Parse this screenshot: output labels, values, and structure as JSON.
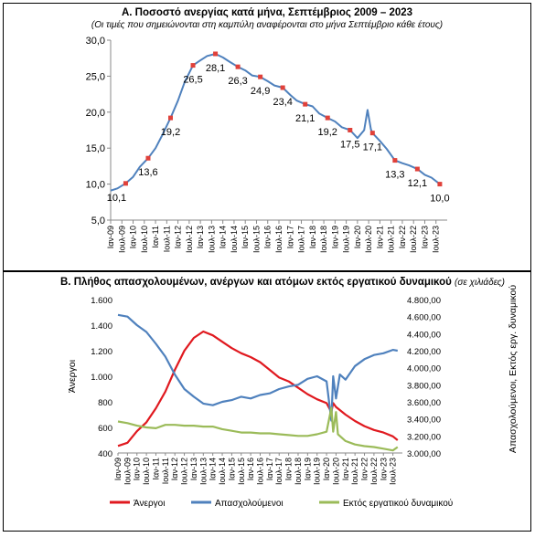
{
  "chart_data": [
    {
      "type": "line",
      "title": "Α. Ποσοστό ανεργίας κατά μήνα, Σεπτέμβριος 2009 – 2023",
      "subtitle": "(Οι τιμές που σημειώνονται στη καμπύλη αναφέρονται στο μήνα Σεπτέμβριο κάθε έτους)",
      "ylim": [
        5,
        30
      ],
      "yticks": [
        "5,0",
        "10,0",
        "15,0",
        "20,0",
        "25,0",
        "30,0"
      ],
      "ytick_values": [
        5,
        10,
        15,
        20,
        25,
        30
      ],
      "xticks": [
        "Ιαν-09",
        "Ιουλ-09",
        "Ιαν-10",
        "Ιουλ-10",
        "Ιαν-11",
        "Ιουλ-11",
        "Ιαν-12",
        "Ιουλ-12",
        "Ιαν-13",
        "Ιουλ-13",
        "Ιαν-14",
        "Ιουλ-14",
        "Ιαν-15",
        "Ιουλ-15",
        "Ιαν-16",
        "Ιουλ-16",
        "Ιαν-17",
        "Ιουλ-17",
        "Ιαν-18",
        "Ιουλ-18",
        "Ιαν-19",
        "Ιουλ-19",
        "Ιαν-20",
        "Ιουλ-20",
        "Ιαν-21",
        "Ιουλ-21",
        "Ιαν-22",
        "Ιουλ-22",
        "Ιαν-23",
        "Ιουλ-23"
      ],
      "grid": false,
      "series": [
        {
          "color": "#4f81bd",
          "points": [
            [
              2009.0,
              9.1
            ],
            [
              2009.3,
              9.4
            ],
            [
              2009.67,
              10.1
            ],
            [
              2010.0,
              11.0
            ],
            [
              2010.3,
              12.4
            ],
            [
              2010.67,
              13.6
            ],
            [
              2011.0,
              15.0
            ],
            [
              2011.3,
              16.8
            ],
            [
              2011.67,
              19.2
            ],
            [
              2012.0,
              21.6
            ],
            [
              2012.3,
              24.2
            ],
            [
              2012.67,
              26.5
            ],
            [
              2013.0,
              27.2
            ],
            [
              2013.3,
              27.8
            ],
            [
              2013.67,
              28.1
            ],
            [
              2014.0,
              27.6
            ],
            [
              2014.3,
              27.0
            ],
            [
              2014.67,
              26.3
            ],
            [
              2015.0,
              25.8
            ],
            [
              2015.3,
              25.1
            ],
            [
              2015.67,
              24.9
            ],
            [
              2016.0,
              24.3
            ],
            [
              2016.3,
              23.7
            ],
            [
              2016.67,
              23.4
            ],
            [
              2017.0,
              22.4
            ],
            [
              2017.3,
              21.6
            ],
            [
              2017.67,
              21.1
            ],
            [
              2018.0,
              20.8
            ],
            [
              2018.3,
              19.8
            ],
            [
              2018.67,
              19.2
            ],
            [
              2019.0,
              18.7
            ],
            [
              2019.3,
              17.9
            ],
            [
              2019.67,
              17.5
            ],
            [
              2020.0,
              16.4
            ],
            [
              2020.3,
              17.5
            ],
            [
              2020.45,
              20.3
            ],
            [
              2020.6,
              17.6
            ],
            [
              2020.67,
              17.1
            ],
            [
              2021.0,
              16.0
            ],
            [
              2021.3,
              14.9
            ],
            [
              2021.67,
              13.3
            ],
            [
              2022.0,
              12.9
            ],
            [
              2022.3,
              12.6
            ],
            [
              2022.67,
              12.1
            ],
            [
              2023.0,
              11.3
            ],
            [
              2023.3,
              10.9
            ],
            [
              2023.67,
              10.0
            ]
          ]
        }
      ],
      "markers": [
        {
          "x": 2009.67,
          "y": 10.1,
          "label": "10,1"
        },
        {
          "x": 2010.67,
          "y": 13.6,
          "label": "13,6"
        },
        {
          "x": 2011.67,
          "y": 19.2,
          "label": "19,2"
        },
        {
          "x": 2012.67,
          "y": 26.5,
          "label": "26,5"
        },
        {
          "x": 2013.67,
          "y": 28.1,
          "label": "28,1"
        },
        {
          "x": 2014.67,
          "y": 26.3,
          "label": "26,3"
        },
        {
          "x": 2015.67,
          "y": 24.9,
          "label": "24,9"
        },
        {
          "x": 2016.67,
          "y": 23.4,
          "label": "23,4"
        },
        {
          "x": 2017.67,
          "y": 21.1,
          "label": "21,1"
        },
        {
          "x": 2018.67,
          "y": 19.2,
          "label": "19,2"
        },
        {
          "x": 2019.67,
          "y": 17.5,
          "label": "17,5"
        },
        {
          "x": 2020.67,
          "y": 17.1,
          "label": "17,1"
        },
        {
          "x": 2021.67,
          "y": 13.3,
          "label": "13,3"
        },
        {
          "x": 2022.67,
          "y": 12.1,
          "label": "12,1"
        },
        {
          "x": 2023.67,
          "y": 10.0,
          "label": "10,0"
        }
      ],
      "marker_color": "#e0413a"
    },
    {
      "type": "line",
      "title": "Β. Πλήθος απασχολουμένων, ανέργων και ατόμων εκτός εργατικού δυναμικού",
      "title_note": "(σε χιλιάδες)",
      "ylabel": "Άνεργοι",
      "y2label": "Απασχολούμενοι, Εκτός εργ. δυναμικού",
      "ylim": [
        400,
        1600
      ],
      "yticks": [
        "400",
        "600",
        "800",
        "1.000",
        "1.200",
        "1.400",
        "1.600"
      ],
      "ytick_values": [
        400,
        600,
        800,
        1000,
        1200,
        1400,
        1600
      ],
      "y2lim": [
        3000,
        4800
      ],
      "y2ticks": [
        "3.000,00",
        "3.200,00",
        "3.400,00",
        "3.600,00",
        "3.800,00",
        "4.000,00",
        "4.200,00",
        "4.400,00",
        "4.600,00",
        "4.800,00"
      ],
      "y2tick_values": [
        3000,
        3200,
        3400,
        3600,
        3800,
        4000,
        4200,
        4400,
        4600,
        4800
      ],
      "xticks": [
        "Ιαν-09",
        "Ιουλ-09",
        "Ιαν-10",
        "Ιουλ-10",
        "Ιαν-11",
        "Ιουλ-11",
        "Ιαν-12",
        "Ιουλ-12",
        "Ιαν-13",
        "Ιουλ-13",
        "Ιαν-14",
        "Ιουλ-14",
        "Ιαν-15",
        "Ιουλ-15",
        "Ιαν-16",
        "Ιουλ-16",
        "Ιαν-17",
        "Ιουλ-17",
        "Ιαν-18",
        "Ιουλ-18",
        "Ιαν-19",
        "Ιουλ-19",
        "Ιαν-20",
        "Ιουλ-20",
        "Ιαν-21",
        "Ιουλ-21",
        "Ιαν-22",
        "Ιουλ-22",
        "Ιαν-23",
        "Ιουλ-23"
      ],
      "grid": false,
      "legend_position": "bottom",
      "series": [
        {
          "name": "Άνεργοι",
          "color": "#e0191f",
          "axis": "left",
          "points": [
            [
              2009.0,
              455
            ],
            [
              2009.5,
              480
            ],
            [
              2010.0,
              570
            ],
            [
              2010.5,
              640
            ],
            [
              2011.0,
              750
            ],
            [
              2011.5,
              880
            ],
            [
              2012.0,
              1050
            ],
            [
              2012.5,
              1200
            ],
            [
              2013.0,
              1300
            ],
            [
              2013.5,
              1350
            ],
            [
              2014.0,
              1320
            ],
            [
              2014.5,
              1270
            ],
            [
              2015.0,
              1220
            ],
            [
              2015.5,
              1180
            ],
            [
              2016.0,
              1150
            ],
            [
              2016.5,
              1110
            ],
            [
              2017.0,
              1050
            ],
            [
              2017.5,
              990
            ],
            [
              2018.0,
              960
            ],
            [
              2018.5,
              910
            ],
            [
              2019.0,
              860
            ],
            [
              2019.5,
              820
            ],
            [
              2020.0,
              790
            ],
            [
              2020.25,
              720
            ],
            [
              2020.35,
              790
            ],
            [
              2020.5,
              760
            ],
            [
              2021.0,
              700
            ],
            [
              2021.5,
              650
            ],
            [
              2022.0,
              610
            ],
            [
              2022.5,
              580
            ],
            [
              2023.0,
              560
            ],
            [
              2023.5,
              530
            ],
            [
              2023.75,
              500
            ]
          ]
        },
        {
          "name": "Απασχολούμενοι",
          "color": "#4f81bd",
          "axis": "right",
          "points": [
            [
              2009.0,
              4620
            ],
            [
              2009.5,
              4600
            ],
            [
              2010.0,
              4500
            ],
            [
              2010.5,
              4420
            ],
            [
              2011.0,
              4280
            ],
            [
              2011.5,
              4130
            ],
            [
              2012.0,
              3920
            ],
            [
              2012.5,
              3750
            ],
            [
              2013.0,
              3660
            ],
            [
              2013.5,
              3580
            ],
            [
              2014.0,
              3560
            ],
            [
              2014.5,
              3600
            ],
            [
              2015.0,
              3620
            ],
            [
              2015.5,
              3660
            ],
            [
              2016.0,
              3640
            ],
            [
              2016.5,
              3680
            ],
            [
              2017.0,
              3700
            ],
            [
              2017.5,
              3750
            ],
            [
              2018.0,
              3780
            ],
            [
              2018.5,
              3800
            ],
            [
              2019.0,
              3870
            ],
            [
              2019.5,
              3900
            ],
            [
              2020.0,
              3840
            ],
            [
              2020.25,
              3380
            ],
            [
              2020.35,
              3900
            ],
            [
              2020.5,
              3640
            ],
            [
              2020.7,
              3920
            ],
            [
              2021.0,
              3860
            ],
            [
              2021.5,
              4020
            ],
            [
              2022.0,
              4100
            ],
            [
              2022.5,
              4150
            ],
            [
              2023.0,
              4170
            ],
            [
              2023.5,
              4210
            ],
            [
              2023.75,
              4200
            ]
          ]
        },
        {
          "name": "Εκτός εργατικού δυναμικού",
          "color": "#9bbb59",
          "axis": "right",
          "points": [
            [
              2009.0,
              3370
            ],
            [
              2009.5,
              3350
            ],
            [
              2010.0,
              3320
            ],
            [
              2010.5,
              3300
            ],
            [
              2011.0,
              3290
            ],
            [
              2011.5,
              3330
            ],
            [
              2012.0,
              3330
            ],
            [
              2012.5,
              3320
            ],
            [
              2013.0,
              3320
            ],
            [
              2013.5,
              3310
            ],
            [
              2014.0,
              3310
            ],
            [
              2014.5,
              3280
            ],
            [
              2015.0,
              3260
            ],
            [
              2015.5,
              3240
            ],
            [
              2016.0,
              3240
            ],
            [
              2016.5,
              3230
            ],
            [
              2017.0,
              3230
            ],
            [
              2017.5,
              3220
            ],
            [
              2018.0,
              3210
            ],
            [
              2018.5,
              3200
            ],
            [
              2019.0,
              3200
            ],
            [
              2019.5,
              3220
            ],
            [
              2020.0,
              3250
            ],
            [
              2020.25,
              3530
            ],
            [
              2020.35,
              3250
            ],
            [
              2020.5,
              3480
            ],
            [
              2020.6,
              3220
            ],
            [
              2021.0,
              3140
            ],
            [
              2021.5,
              3100
            ],
            [
              2022.0,
              3080
            ],
            [
              2022.5,
              3070
            ],
            [
              2023.0,
              3050
            ],
            [
              2023.5,
              3030
            ],
            [
              2023.75,
              3070
            ]
          ]
        }
      ]
    }
  ]
}
